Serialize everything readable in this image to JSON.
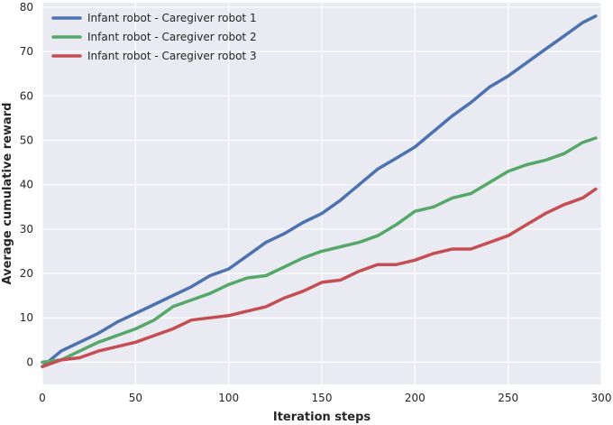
{
  "chart_data": {
    "type": "line",
    "xlabel": "Iteration steps",
    "ylabel": "Average cumulative reward",
    "xlim": [
      0,
      300
    ],
    "ylim": [
      -5,
      81
    ],
    "xticks": [
      0,
      50,
      100,
      150,
      200,
      250,
      300
    ],
    "yticks": [
      0,
      10,
      20,
      30,
      40,
      50,
      60,
      70,
      80
    ],
    "grid": true,
    "background": "#EAEAF2",
    "legend_position": "top-left",
    "series": [
      {
        "name": "Infant robot - Caregiver robot 1",
        "color": "#4C72B0",
        "x": [
          0,
          10,
          20,
          30,
          40,
          50,
          60,
          70,
          80,
          90,
          100,
          110,
          120,
          130,
          140,
          150,
          160,
          170,
          180,
          190,
          200,
          210,
          220,
          230,
          240,
          250,
          260,
          270,
          280,
          290,
          297
        ],
        "values": [
          -1,
          2.5,
          4.5,
          6.5,
          9,
          11,
          13,
          15,
          17,
          19.5,
          21,
          24,
          27,
          29,
          31.5,
          33.5,
          36.5,
          40,
          43.5,
          46,
          48.5,
          52,
          55.5,
          58.5,
          62,
          64.5,
          67.5,
          70.5,
          73.5,
          76.5,
          78
        ]
      },
      {
        "name": "Infant robot - Caregiver robot 2",
        "color": "#55A868",
        "x": [
          0,
          10,
          20,
          30,
          40,
          50,
          60,
          70,
          80,
          90,
          100,
          110,
          120,
          130,
          140,
          150,
          160,
          170,
          180,
          190,
          200,
          210,
          220,
          230,
          240,
          250,
          260,
          270,
          280,
          290,
          297
        ],
        "values": [
          0,
          0.5,
          2.5,
          4.5,
          6,
          7.5,
          9.5,
          12.5,
          14,
          15.5,
          17.5,
          19,
          19.5,
          21.5,
          23.5,
          25,
          26,
          27,
          28.5,
          31,
          34,
          35,
          37,
          38,
          40.5,
          43,
          44.5,
          45.5,
          47,
          49.5,
          50.5
        ]
      },
      {
        "name": "Infant robot - Caregiver robot 3",
        "color": "#C44E52",
        "x": [
          0,
          10,
          20,
          30,
          40,
          50,
          60,
          70,
          80,
          90,
          100,
          110,
          120,
          130,
          140,
          150,
          160,
          170,
          180,
          190,
          200,
          210,
          220,
          230,
          240,
          250,
          260,
          270,
          280,
          290,
          297
        ],
        "values": [
          -1,
          0.5,
          1,
          2.5,
          3.5,
          4.5,
          6,
          7.5,
          9.5,
          10,
          10.5,
          11.5,
          12.5,
          14.5,
          16,
          18,
          18.5,
          20.5,
          22,
          22,
          23,
          24.5,
          25.5,
          25.5,
          27,
          28.5,
          31,
          33.5,
          35.5,
          37,
          39
        ]
      }
    ]
  }
}
